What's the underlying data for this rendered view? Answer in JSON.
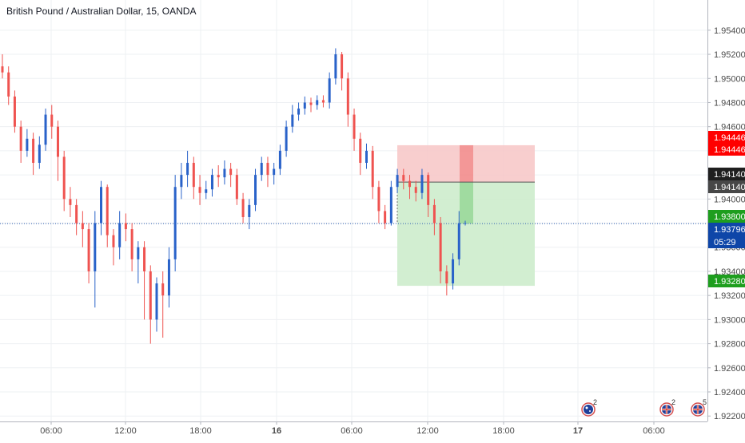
{
  "header": {
    "title": "British Pound / Australian Dollar, 15, OANDA"
  },
  "colors": {
    "up": "#2962c9",
    "down": "#ef5350",
    "grid": "#eef0f3",
    "axis_text": "#4a4a4a",
    "loss_zone": "#f7c6c6",
    "profit_zone": "#cdeccc"
  },
  "chart_data": {
    "type": "candlestick",
    "title": "British Pound / Australian Dollar, 15, OANDA",
    "ylim": [
      1.922,
      1.956
    ],
    "y_ticks": [
      "1.95400",
      "1.95200",
      "1.95000",
      "1.94800",
      "1.94600",
      "1.94400",
      "1.94200",
      "1.94000",
      "1.93800",
      "1.93600",
      "1.93400",
      "1.93200",
      "1.93000",
      "1.92800",
      "1.92600",
      "1.92400",
      "1.92200"
    ],
    "x_tick_labels": [
      "06:00",
      "12:00",
      "18:00",
      "16",
      "06:00",
      "12:00",
      "18:00",
      "17",
      "06:00"
    ],
    "grid": true,
    "price_labels": [
      {
        "text": "1.94446",
        "price": 1.94446,
        "bg": "#ff0000",
        "fg": "#ffffff"
      },
      {
        "text": "1.94446",
        "price": 1.94446,
        "bg": "#ff0000",
        "fg": "#ffffff"
      },
      {
        "text": "1.94140",
        "price": 1.9414,
        "bg": "#1f1f1f",
        "fg": "#ffffff"
      },
      {
        "text": "1.94140",
        "price": 1.9414,
        "bg": "#474747",
        "fg": "#ffffff"
      },
      {
        "text": "1.93800",
        "price": 1.938,
        "bg": "#1e9e1e",
        "fg": "#ffffff"
      },
      {
        "text": "1.93796",
        "price": 1.93796,
        "bg": "#0e46a8",
        "fg": "#ffffff"
      },
      {
        "text": "05:29",
        "price": 1.93616,
        "bg": "#0e46a8",
        "fg": "#ffffff"
      },
      {
        "text": "1.93280",
        "price": 1.9328,
        "bg": "#1e9e1e",
        "fg": "#ffffff"
      }
    ],
    "position": {
      "type": "short",
      "entry": 1.9414,
      "stop": 1.94446,
      "target": 1.9328
    },
    "current_price": 1.93796,
    "candles": [
      [
        1.951,
        1.9505,
        1.952,
        1.95
      ],
      [
        1.9505,
        1.9485,
        1.951,
        1.9478
      ],
      [
        1.9485,
        1.946,
        1.949,
        1.9455
      ],
      [
        1.946,
        1.944,
        1.9465,
        1.943
      ],
      [
        1.944,
        1.945,
        1.9458,
        1.9435
      ],
      [
        1.945,
        1.943,
        1.9455,
        1.942
      ],
      [
        1.943,
        1.9445,
        1.9452,
        1.9425
      ],
      [
        1.9445,
        1.947,
        1.9475,
        1.944
      ],
      [
        1.947,
        1.946,
        1.9478,
        1.945
      ],
      [
        1.946,
        1.9435,
        1.9465,
        1.9415
      ],
      [
        1.9435,
        1.94,
        1.944,
        1.939
      ],
      [
        1.94,
        1.9395,
        1.941,
        1.9385
      ],
      [
        1.9395,
        1.938,
        1.94,
        1.937
      ],
      [
        1.938,
        1.9375,
        1.939,
        1.936
      ],
      [
        1.9375,
        1.934,
        1.938,
        1.933
      ],
      [
        1.934,
        1.938,
        1.939,
        1.931
      ],
      [
        1.938,
        1.941,
        1.9415,
        1.937
      ],
      [
        1.941,
        1.937,
        1.9412,
        1.936
      ],
      [
        1.937,
        1.936,
        1.9375,
        1.9345
      ],
      [
        1.936,
        1.938,
        1.939,
        1.935
      ],
      [
        1.938,
        1.9375,
        1.9388,
        1.9365
      ],
      [
        1.9375,
        1.935,
        1.938,
        1.934
      ],
      [
        1.935,
        1.936,
        1.9365,
        1.933
      ],
      [
        1.936,
        1.934,
        1.9365,
        1.93
      ],
      [
        1.934,
        1.93,
        1.9345,
        1.928
      ],
      [
        1.93,
        1.933,
        1.9335,
        1.929
      ],
      [
        1.933,
        1.932,
        1.934,
        1.9285
      ],
      [
        1.932,
        1.935,
        1.936,
        1.931
      ],
      [
        1.935,
        1.941,
        1.942,
        1.934
      ],
      [
        1.941,
        1.942,
        1.943,
        1.94
      ],
      [
        1.942,
        1.943,
        1.944,
        1.941
      ],
      [
        1.943,
        1.941,
        1.9435,
        1.94
      ],
      [
        1.941,
        1.9405,
        1.942,
        1.9395
      ],
      [
        1.9405,
        1.9408,
        1.9415,
        1.94
      ],
      [
        1.9408,
        1.942,
        1.9425,
        1.9402
      ],
      [
        1.942,
        1.9418,
        1.9428,
        1.941
      ],
      [
        1.9418,
        1.9425,
        1.9432,
        1.9412
      ],
      [
        1.9425,
        1.942,
        1.943,
        1.941
      ],
      [
        1.942,
        1.94,
        1.9425,
        1.9395
      ],
      [
        1.94,
        1.9385,
        1.9405,
        1.938
      ],
      [
        1.9385,
        1.9395,
        1.94,
        1.9375
      ],
      [
        1.9395,
        1.942,
        1.9425,
        1.939
      ],
      [
        1.942,
        1.943,
        1.9435,
        1.9415
      ],
      [
        1.943,
        1.942,
        1.9435,
        1.941
      ],
      [
        1.942,
        1.9425,
        1.943,
        1.9412
      ],
      [
        1.9425,
        1.944,
        1.9445,
        1.942
      ],
      [
        1.944,
        1.946,
        1.9465,
        1.9435
      ],
      [
        1.946,
        1.947,
        1.9478,
        1.9455
      ],
      [
        1.947,
        1.9475,
        1.948,
        1.9465
      ],
      [
        1.9475,
        1.948,
        1.9485,
        1.947
      ],
      [
        1.948,
        1.9478,
        1.9484,
        1.9472
      ],
      [
        1.9478,
        1.9482,
        1.9486,
        1.9474
      ],
      [
        1.9482,
        1.948,
        1.9486,
        1.9476
      ],
      [
        1.948,
        1.95,
        1.9505,
        1.9475
      ],
      [
        1.95,
        1.952,
        1.9525,
        1.9495
      ],
      [
        1.952,
        1.95,
        1.9522,
        1.949
      ],
      [
        1.95,
        1.947,
        1.9505,
        1.946
      ],
      [
        1.947,
        1.945,
        1.9475,
        1.944
      ],
      [
        1.945,
        1.943,
        1.9455,
        1.942
      ],
      [
        1.943,
        1.944,
        1.9446,
        1.9425
      ],
      [
        1.944,
        1.941,
        1.9444,
        1.94
      ],
      [
        1.941,
        1.939,
        1.9415,
        1.938
      ],
      [
        1.939,
        1.938,
        1.9395,
        1.9375
      ],
      [
        1.938,
        1.941,
        1.9415,
        1.9378
      ],
      [
        1.941,
        1.942,
        1.9425,
        1.9405
      ],
      [
        1.942,
        1.9415,
        1.9425,
        1.9408
      ],
      [
        1.9415,
        1.941,
        1.942,
        1.94
      ],
      [
        1.941,
        1.9405,
        1.9415,
        1.9398
      ],
      [
        1.9405,
        1.942,
        1.9425,
        1.94
      ],
      [
        1.942,
        1.9395,
        1.9422,
        1.9385
      ],
      [
        1.9395,
        1.938,
        1.94,
        1.937
      ],
      [
        1.938,
        1.934,
        1.9385,
        1.933
      ],
      [
        1.934,
        1.933,
        1.9345,
        1.932
      ],
      [
        1.933,
        1.935,
        1.9355,
        1.9325
      ],
      [
        1.935,
        1.938,
        1.939,
        1.9345
      ],
      [
        1.938,
        1.938,
        1.9382,
        1.9378
      ]
    ]
  },
  "events": [
    {
      "count": "2",
      "flag": "au-flag-icon"
    },
    {
      "count": "2",
      "flag": "uk-flag-icon"
    },
    {
      "count": "5",
      "flag": "uk-flag-icon"
    }
  ]
}
